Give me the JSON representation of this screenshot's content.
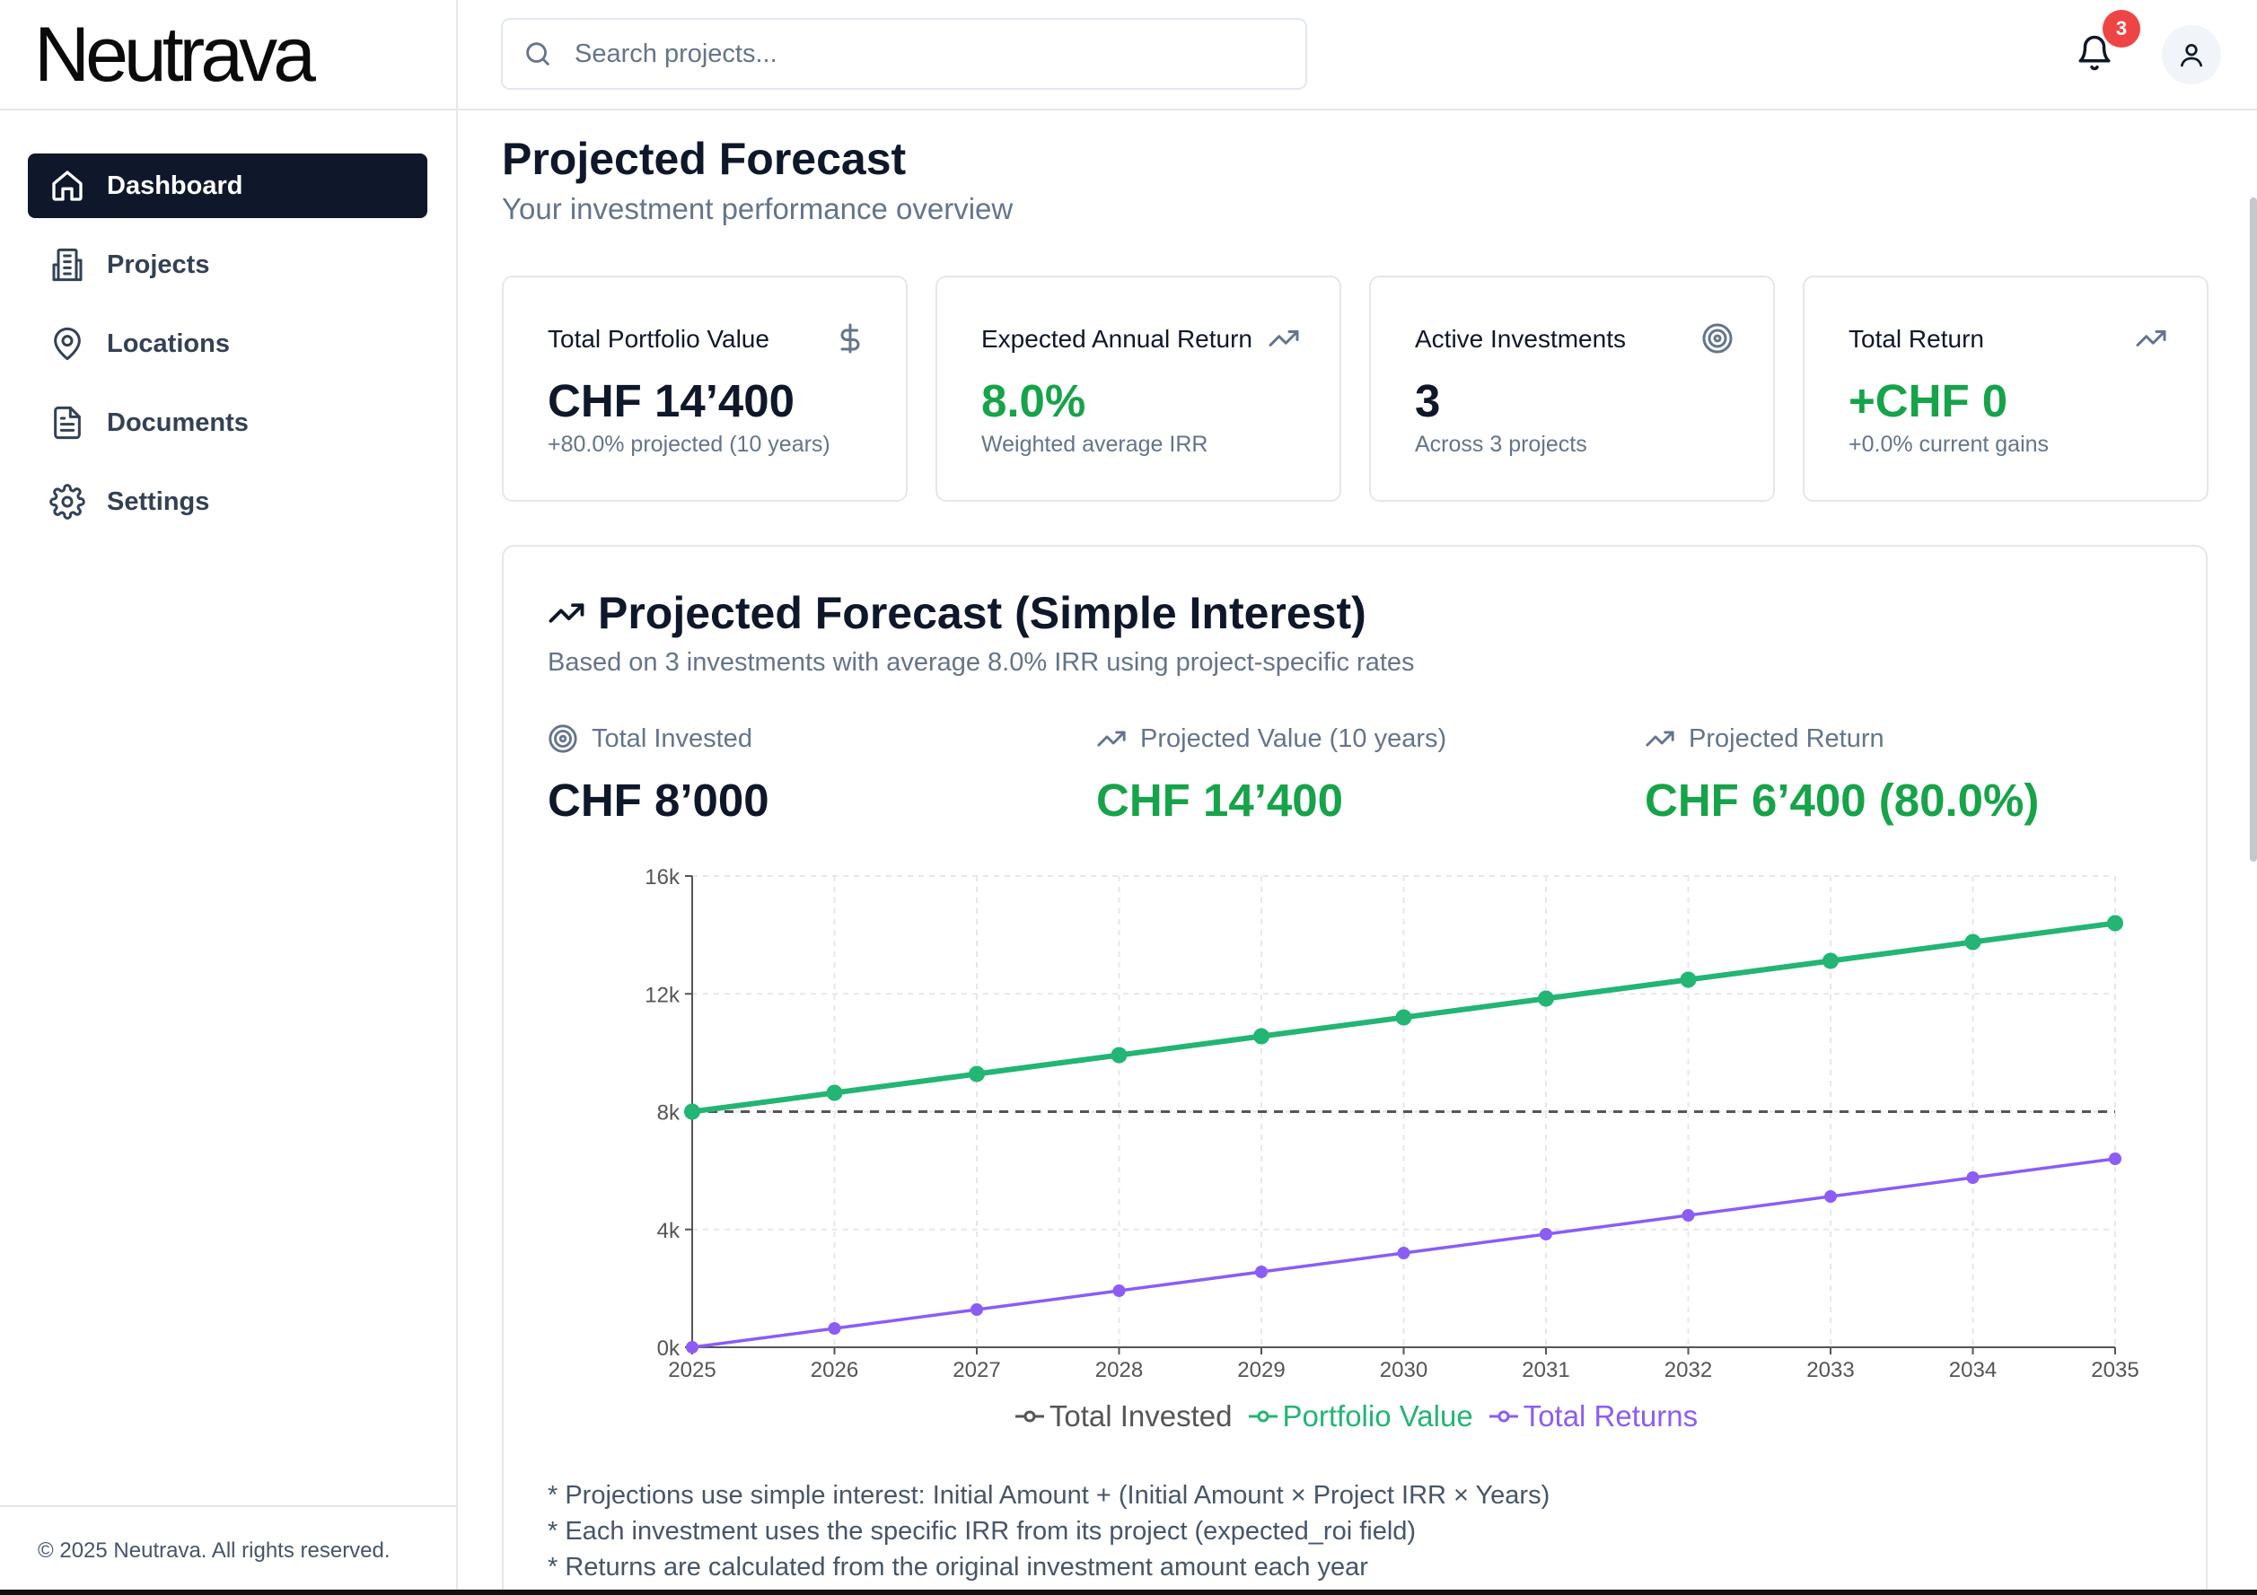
{
  "brand": {
    "logo": "Neutrava"
  },
  "sidebar": {
    "items": [
      {
        "label": "Dashboard",
        "icon": "home-icon",
        "active": true
      },
      {
        "label": "Projects",
        "icon": "building-icon",
        "active": false
      },
      {
        "label": "Locations",
        "icon": "map-pin-icon",
        "active": false
      },
      {
        "label": "Documents",
        "icon": "document-icon",
        "active": false
      },
      {
        "label": "Settings",
        "icon": "gear-icon",
        "active": false
      }
    ],
    "footer": "© 2025 Neutrava. All rights reserved."
  },
  "topbar": {
    "search_placeholder": "Search projects...",
    "notification_count": "3"
  },
  "page": {
    "title": "Projected Forecast",
    "subtitle": "Your investment performance overview"
  },
  "cards": [
    {
      "title": "Total Portfolio Value",
      "icon": "dollar-icon",
      "value": "CHF 14’400",
      "sub": "+80.0% projected (10 years)",
      "green": false
    },
    {
      "title": "Expected Annual Return",
      "icon": "trending-up-icon",
      "value": "8.0%",
      "sub": "Weighted average IRR",
      "green": true
    },
    {
      "title": "Active Investments",
      "icon": "target-icon",
      "value": "3",
      "sub": "Across 3 projects",
      "green": false
    },
    {
      "title": "Total Return",
      "icon": "trending-up-icon",
      "value": "+CHF 0",
      "sub": "+0.0% current gains",
      "green": true
    }
  ],
  "forecast": {
    "title": "Projected Forecast (Simple Interest)",
    "subtitle": "Based on 3 investments with average 8.0% IRR using project-specific rates",
    "stats": [
      {
        "label": "Total Invested",
        "icon": "target-icon",
        "value": "CHF 8’000"
      },
      {
        "label": "Projected Value (10 years)",
        "icon": "trending-up-icon",
        "value": "CHF 14’400"
      },
      {
        "label": "Projected Return",
        "icon": "trending-up-icon",
        "value": "CHF 6’400 (80.0%)"
      }
    ],
    "notes": [
      "* Projections use simple interest: Initial Amount + (Initial Amount × Project IRR × Years)",
      "* Each investment uses the specific IRR from its project (expected_roi field)",
      "* Returns are calculated from the original investment amount each year"
    ]
  },
  "colors": {
    "invested": "#555555",
    "portfolio": "#22b573",
    "returns": "#8b5cf6",
    "green_text": "#16a34a"
  },
  "chart_data": {
    "type": "line",
    "x": [
      2025,
      2026,
      2027,
      2028,
      2029,
      2030,
      2031,
      2032,
      2033,
      2034,
      2035
    ],
    "ylim": [
      0,
      16000
    ],
    "yticks": [
      0,
      4000,
      8000,
      12000,
      16000
    ],
    "ytick_labels": [
      "0k",
      "4k",
      "8k",
      "12k",
      "16k"
    ],
    "grid": true,
    "legend_position": "bottom",
    "series": [
      {
        "name": "Total Invested",
        "style": "dashed",
        "values": [
          8000,
          8000,
          8000,
          8000,
          8000,
          8000,
          8000,
          8000,
          8000,
          8000,
          8000
        ]
      },
      {
        "name": "Portfolio Value",
        "style": "solid-thick",
        "values": [
          8000,
          8640,
          9280,
          9920,
          10560,
          11200,
          11840,
          12480,
          13120,
          13760,
          14400
        ]
      },
      {
        "name": "Total Returns",
        "style": "solid",
        "values": [
          0,
          640,
          1280,
          1920,
          2560,
          3200,
          3840,
          4480,
          5120,
          5760,
          6400
        ]
      }
    ]
  }
}
